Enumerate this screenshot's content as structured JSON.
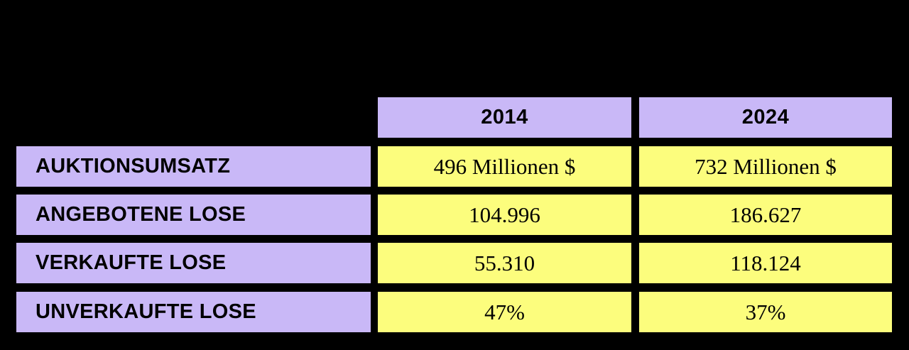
{
  "colors": {
    "background": "#000000",
    "header_bg": "#c9b8f7",
    "label_bg": "#c9b8f7",
    "value_bg": "#fcfd7d",
    "text": "#000000"
  },
  "table": {
    "header": {
      "col_2014": "2014",
      "col_2024": "2024"
    },
    "rows": [
      {
        "label": "AUKTIONSUMSATZ",
        "v2014": "496 Millionen $",
        "v2024": "732 Millionen $"
      },
      {
        "label": "ANGEBOTENE LOSE",
        "v2014": "104.996",
        "v2024": "186.627"
      },
      {
        "label": "VERKAUFTE LOSE",
        "v2014": "55.310",
        "v2024": "118.124"
      },
      {
        "label": "UNVERKAUFTE LOSE",
        "v2014": "47%",
        "v2024": "37%"
      }
    ]
  },
  "chart_data": {
    "type": "table",
    "title": "",
    "columns": [
      "",
      "2014",
      "2024"
    ],
    "rows": [
      [
        "AUKTIONSUMSATZ",
        "496 Millionen $",
        "732 Millionen $"
      ],
      [
        "ANGEBOTENE LOSE",
        "104.996",
        "186.627"
      ],
      [
        "VERKAUFTE LOSE",
        "55.310",
        "118.124"
      ],
      [
        "UNVERKAUFTE LOSE",
        "47%",
        "37%"
      ]
    ],
    "notes_layout": "black background; lavender header and label cells; yellow value cells; no cell above label column"
  }
}
